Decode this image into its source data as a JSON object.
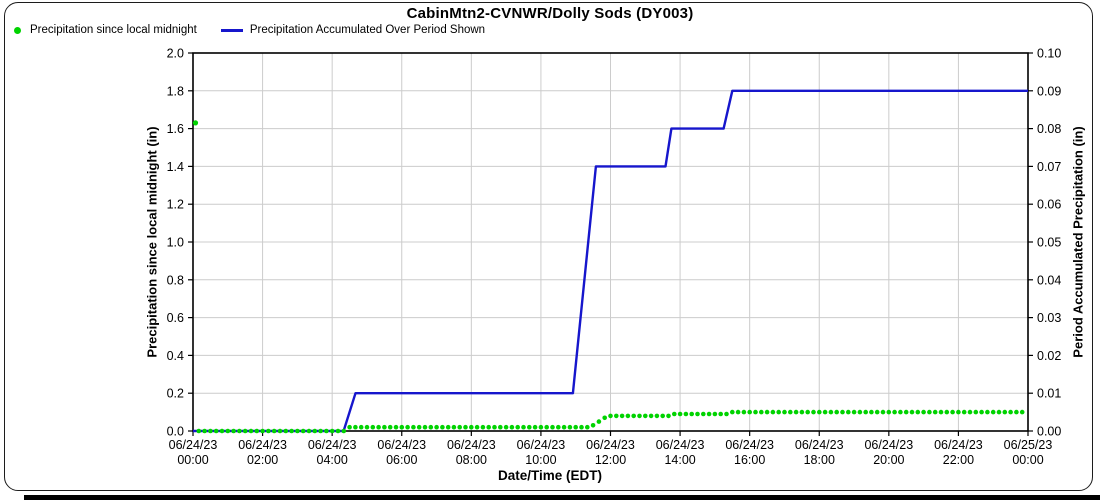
{
  "title": "CabinMtn2-CVNWR/Dolly Sods (DY003)",
  "legend": [
    {
      "label": "Precipitation since local midnight",
      "marker": "dot-icon",
      "color": "#00D300"
    },
    {
      "label": "Precipitation Accumulated Over Period Shown",
      "marker": "line-icon",
      "color": "#1616CC"
    }
  ],
  "colors": {
    "green": "#00D300",
    "blue": "#1616CC",
    "grid": "#cccccc",
    "axis": "#000000",
    "background": "#ffffff"
  },
  "chart_data": {
    "type": "line",
    "title": "CabinMtn2-CVNWR/Dolly Sods (DY003)",
    "grid": true,
    "legend_position": "top-left",
    "x_axis": {
      "label": "Date/Time (EDT)",
      "range_hours": [
        0,
        24
      ],
      "tick_interval_hours": 2,
      "ticks": [
        {
          "date": "06/24/23",
          "time": "00:00"
        },
        {
          "date": "06/24/23",
          "time": "02:00"
        },
        {
          "date": "06/24/23",
          "time": "04:00"
        },
        {
          "date": "06/24/23",
          "time": "06:00"
        },
        {
          "date": "06/24/23",
          "time": "08:00"
        },
        {
          "date": "06/24/23",
          "time": "10:00"
        },
        {
          "date": "06/24/23",
          "time": "12:00"
        },
        {
          "date": "06/24/23",
          "time": "14:00"
        },
        {
          "date": "06/24/23",
          "time": "16:00"
        },
        {
          "date": "06/24/23",
          "time": "18:00"
        },
        {
          "date": "06/24/23",
          "time": "20:00"
        },
        {
          "date": "06/24/23",
          "time": "22:00"
        },
        {
          "date": "06/25/23",
          "time": "00:00"
        }
      ]
    },
    "y_left": {
      "label": "Precipitation since local midnight (in)",
      "range": [
        0,
        2.0
      ],
      "tick_step": 0.2,
      "ticks": [
        "0.0",
        "0.2",
        "0.4",
        "0.6",
        "0.8",
        "1.0",
        "1.2",
        "1.4",
        "1.6",
        "1.8",
        "2.0"
      ]
    },
    "y_right": {
      "label": "Period Accumulated Precipitation (in)",
      "range": [
        0,
        0.1
      ],
      "tick_step": 0.01,
      "ticks": [
        "0.00",
        "0.01",
        "0.02",
        "0.03",
        "0.04",
        "0.05",
        "0.06",
        "0.07",
        "0.08",
        "0.09",
        "0.10"
      ]
    },
    "series": [
      {
        "name": "Precipitation since local midnight",
        "type": "scatter",
        "axis": "left",
        "color": "#00D300",
        "sample_interval_minutes": 10,
        "outlier_point": {
          "hour": 0.0,
          "value": 1.63
        },
        "step_breakpoints": [
          [
            0.167,
            0.0
          ],
          [
            4.5,
            0.02
          ],
          [
            11.5,
            0.03
          ],
          [
            11.667,
            0.05
          ],
          [
            11.833,
            0.07
          ],
          [
            12.0,
            0.08
          ],
          [
            13.833,
            0.09
          ],
          [
            15.5,
            0.1
          ]
        ]
      },
      {
        "name": "Precipitation Accumulated Over Period Shown",
        "type": "line",
        "axis": "right",
        "color": "#1616CC",
        "points": [
          [
            0,
            0.0
          ],
          [
            4.33,
            0.0
          ],
          [
            4.67,
            0.01
          ],
          [
            10.92,
            0.01
          ],
          [
            11.58,
            0.07
          ],
          [
            13.58,
            0.07
          ],
          [
            13.75,
            0.08
          ],
          [
            15.25,
            0.08
          ],
          [
            15.5,
            0.09
          ],
          [
            24,
            0.09
          ]
        ]
      }
    ]
  }
}
